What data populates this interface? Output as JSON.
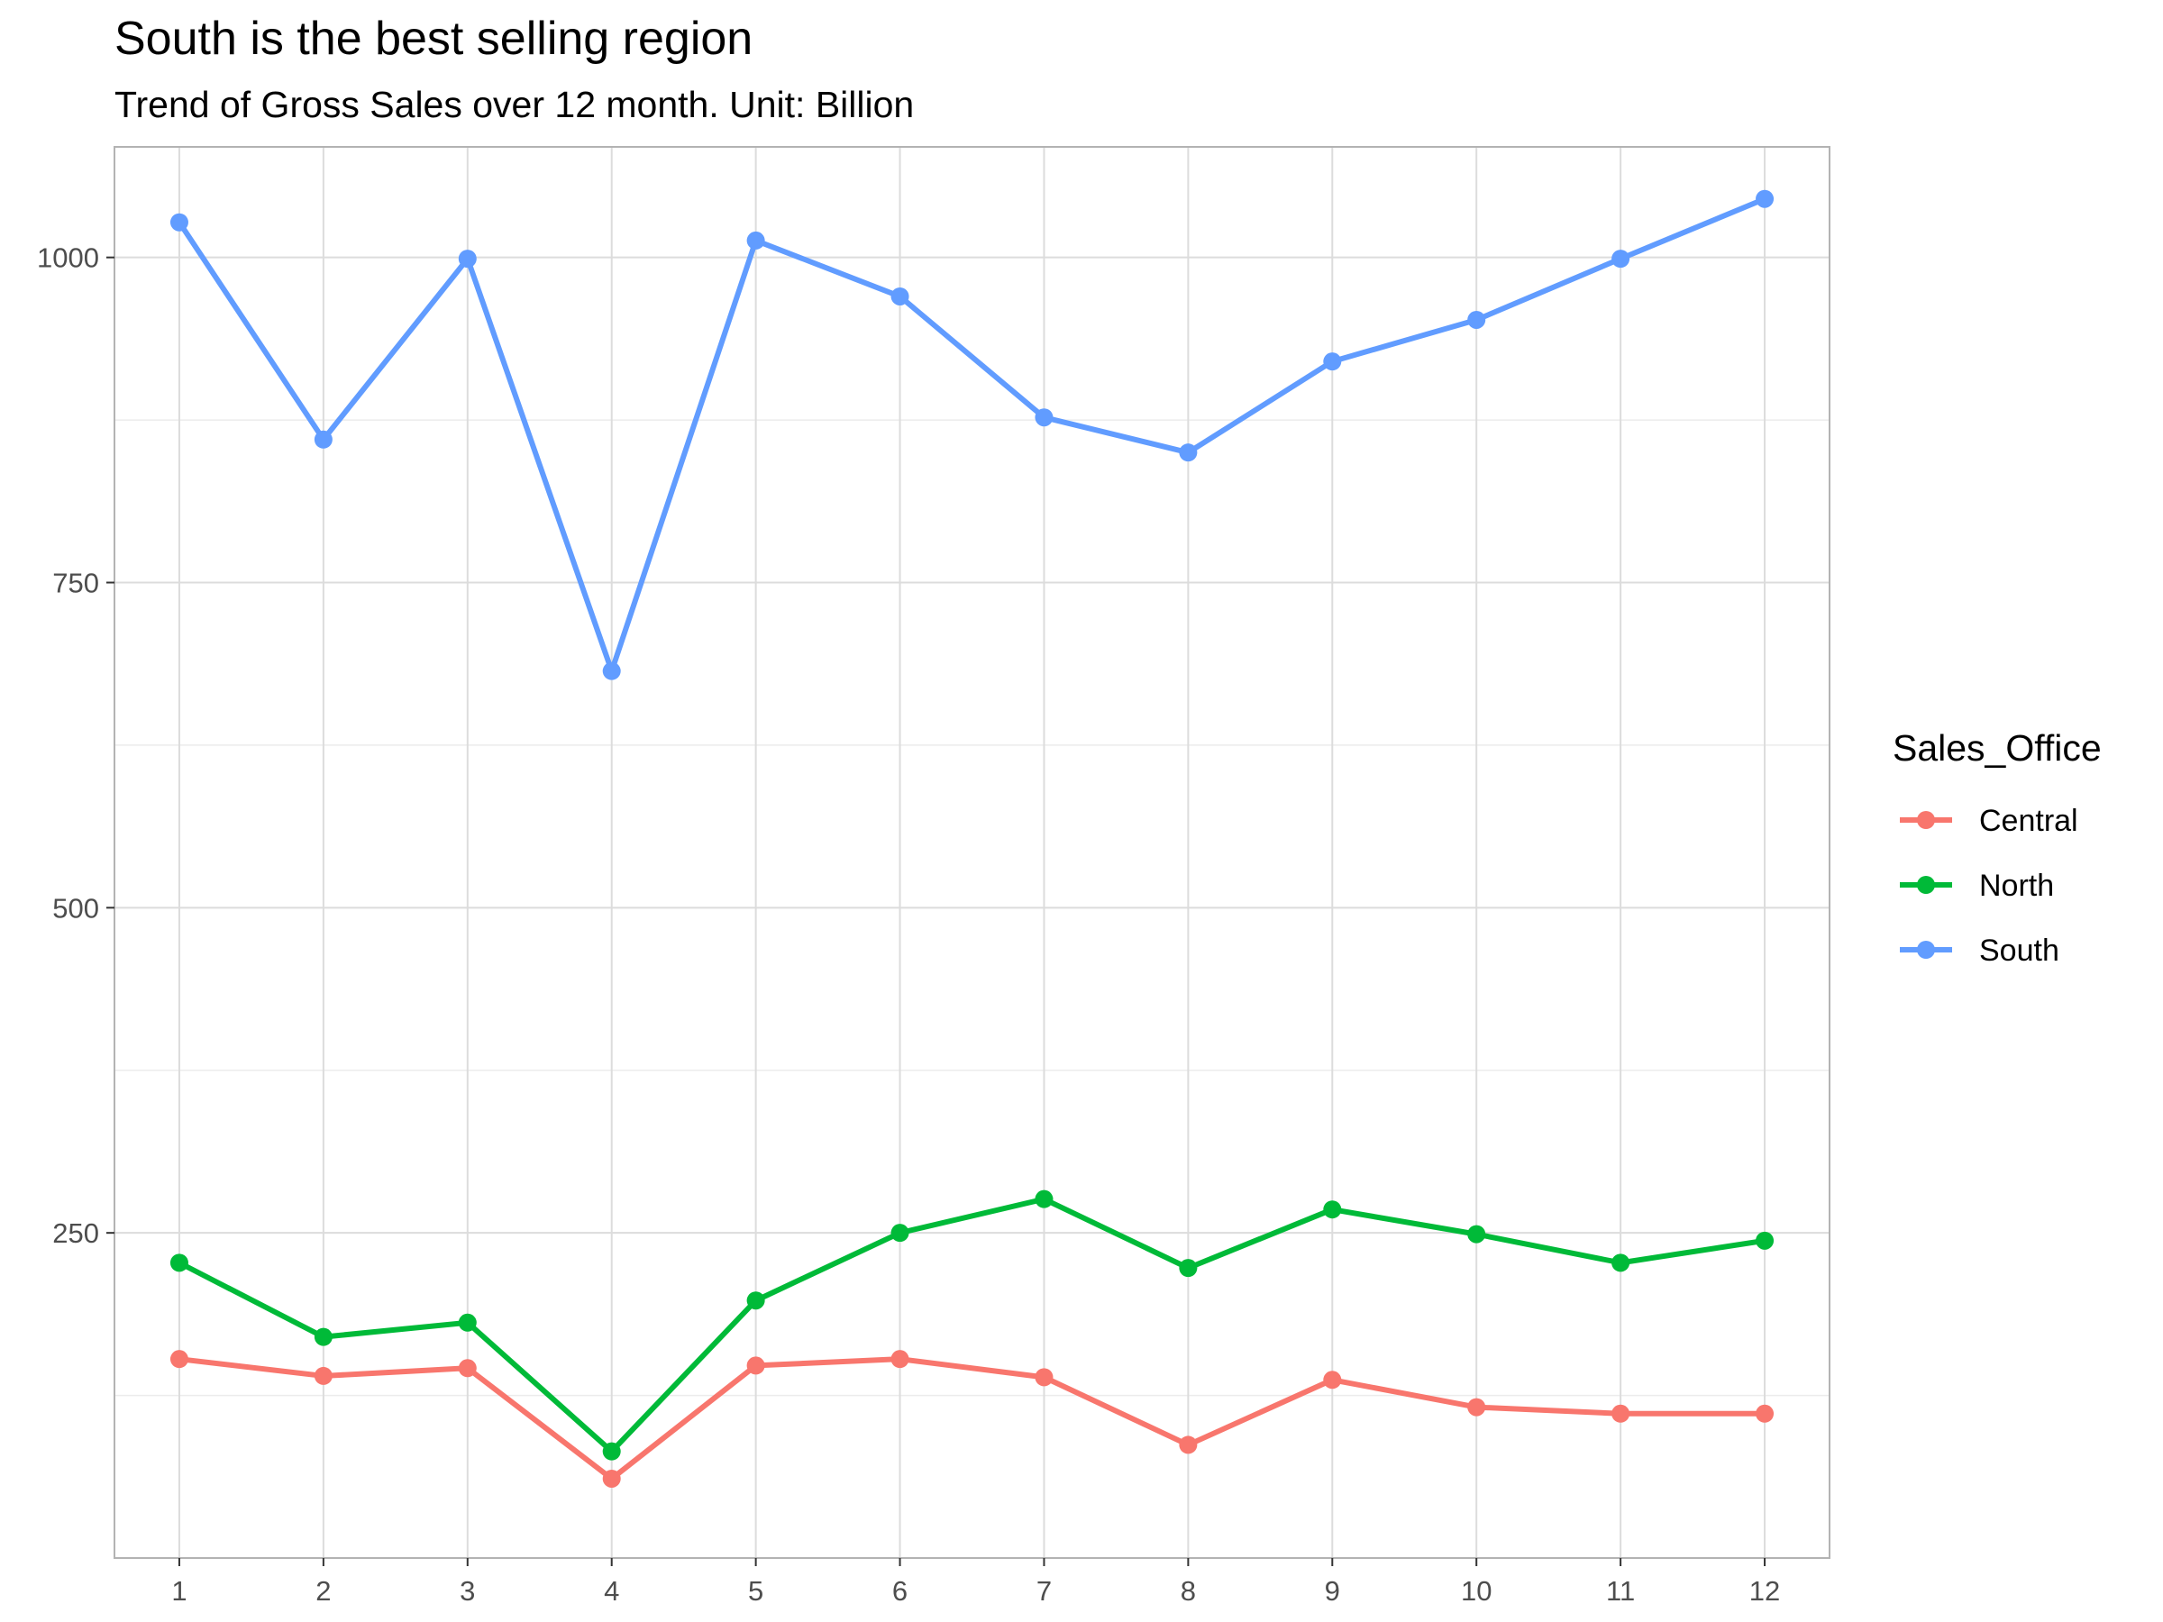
{
  "chart_data": {
    "type": "line",
    "title": "South is the best selling region",
    "subtitle": "Trend of Gross Sales over 12 month. Unit: Billion",
    "xlabel": "",
    "ylabel": "",
    "x": [
      1,
      2,
      3,
      4,
      5,
      6,
      7,
      8,
      9,
      10,
      11,
      12
    ],
    "x_tick_labels": [
      "1",
      "2",
      "3",
      "4",
      "5",
      "6",
      "7",
      "8",
      "9",
      "10",
      "11",
      "12"
    ],
    "y_ticks": [
      250,
      500,
      750,
      1000
    ],
    "y_tick_labels": [
      "250",
      "500",
      "750",
      "1000"
    ],
    "xlim": [
      0.55,
      12.45
    ],
    "ylim": [
      0,
      1085
    ],
    "grid": true,
    "legend_title": "Sales_Office",
    "legend_position": "right",
    "series": [
      {
        "name": "Central",
        "color": "#F8766D",
        "values": [
          153,
          140,
          146,
          61,
          148,
          153,
          139,
          87,
          137,
          116,
          111,
          111
        ]
      },
      {
        "name": "North",
        "color": "#00BA38",
        "values": [
          227,
          170,
          181,
          82,
          198,
          250,
          276,
          223,
          268,
          249,
          227,
          244
        ]
      },
      {
        "name": "South",
        "color": "#619CFF",
        "values": [
          1027,
          860,
          999,
          682,
          1013,
          970,
          877,
          850,
          920,
          952,
          999,
          1045
        ]
      }
    ]
  }
}
